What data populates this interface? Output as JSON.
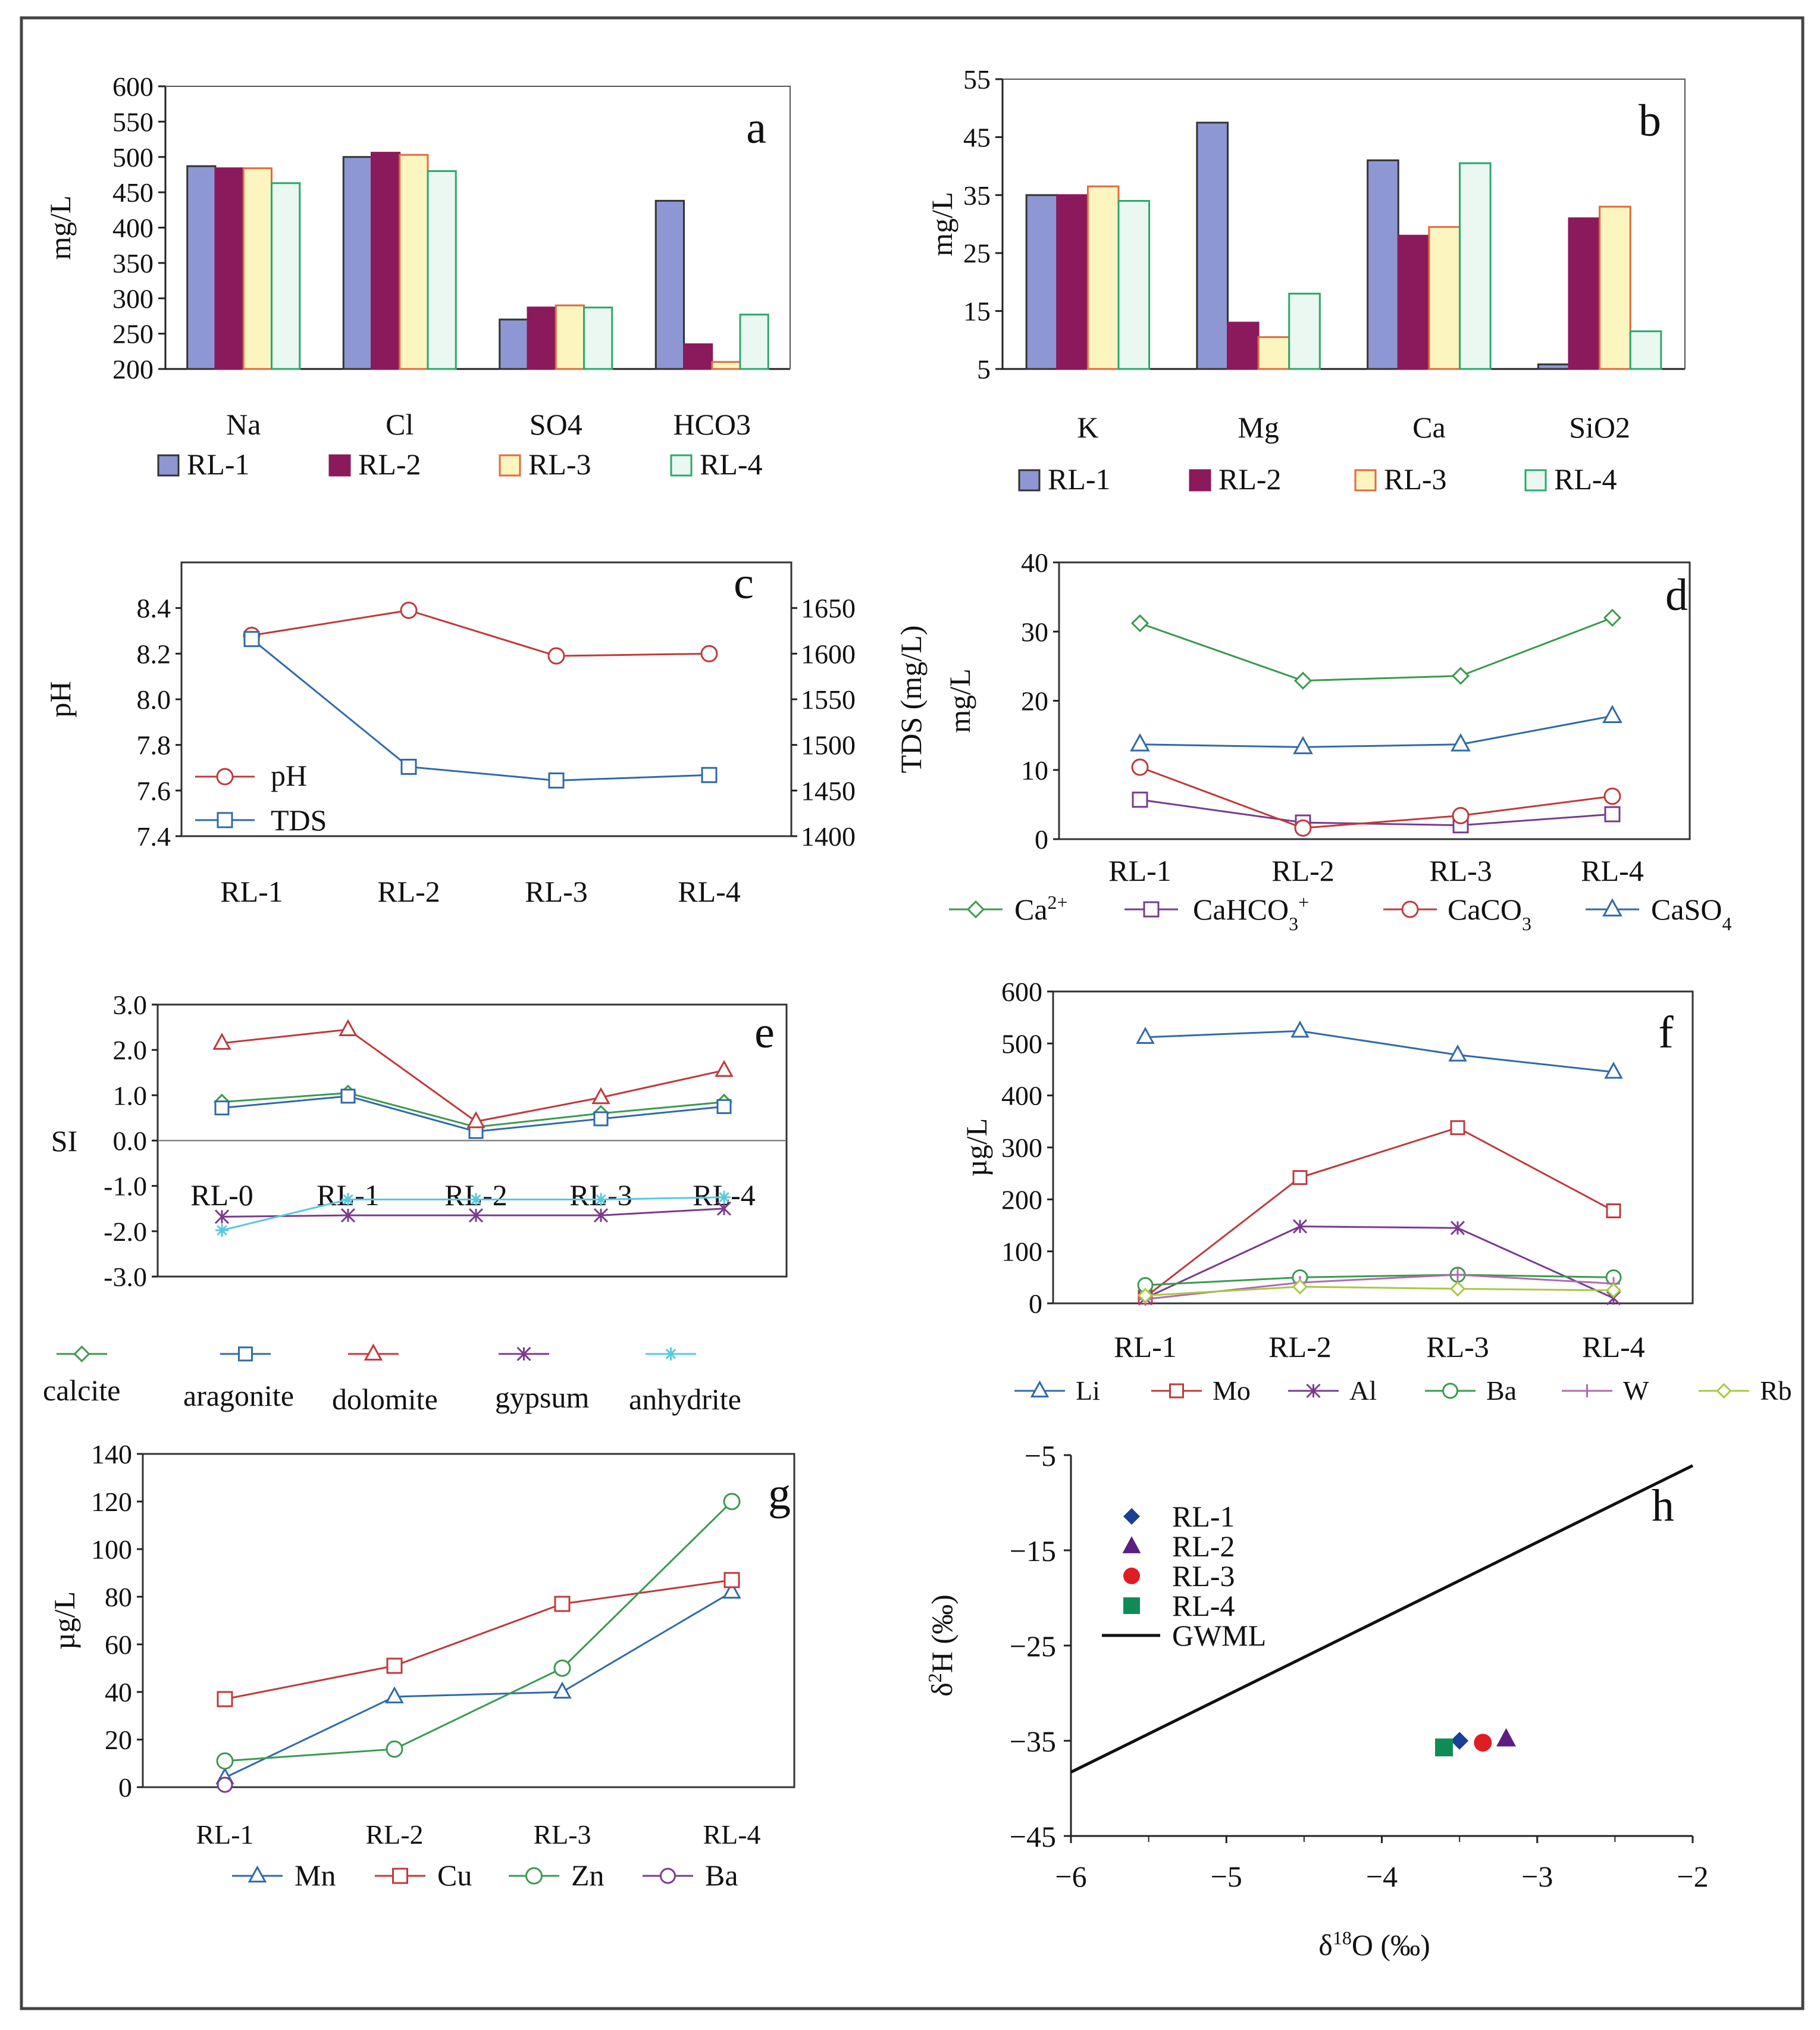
{
  "chart_data": [
    {
      "panel": "a",
      "type": "bar",
      "ylabel": "mg/L",
      "ylim": [
        200,
        600
      ],
      "yticks": [
        600,
        550,
        500,
        450,
        400,
        350,
        300,
        250,
        200
      ],
      "categories": [
        "Na",
        "Cl",
        "SO4",
        "HCO3"
      ],
      "series": [
        {
          "name": "RL-1",
          "values": [
            487,
            500,
            270,
            438
          ]
        },
        {
          "name": "RL-2",
          "values": [
            484,
            506,
            287,
            235
          ]
        },
        {
          "name": "RL-3",
          "values": [
            484,
            503,
            290,
            210
          ]
        },
        {
          "name": "RL-4",
          "values": [
            463,
            480,
            287,
            277
          ]
        }
      ]
    },
    {
      "panel": "b",
      "type": "bar",
      "ylabel": "mg/L",
      "ylim": [
        5,
        55
      ],
      "yticks": [
        55,
        45,
        35,
        25,
        15,
        5
      ],
      "categories": [
        "K",
        "Mg",
        "Ca",
        "SiO2"
      ],
      "series": [
        {
          "name": "RL-1",
          "values": [
            35,
            47.5,
            41,
            5.8
          ]
        },
        {
          "name": "RL-2",
          "values": [
            35,
            13,
            28,
            31
          ]
        },
        {
          "name": "RL-3",
          "values": [
            36.5,
            10.5,
            29.5,
            33
          ]
        },
        {
          "name": "RL-4",
          "values": [
            34,
            18,
            40.5,
            11.5
          ]
        }
      ]
    },
    {
      "panel": "c",
      "type": "line",
      "ylabel": "pH",
      "y2label": "TDS (mg/L)",
      "ylim": [
        7.4,
        8.6
      ],
      "y2lim": [
        1400,
        1700
      ],
      "yticks": [
        "8.4",
        "8.2",
        "8.0",
        "7.8",
        "7.6",
        "7.4"
      ],
      "y2ticks": [
        "1650",
        "1600",
        "1550",
        "1500",
        "1450",
        "1400"
      ],
      "categories": [
        "RL-1",
        "RL-2",
        "RL-3",
        "RL-4"
      ],
      "series": [
        {
          "name": "pH",
          "axis": "left",
          "values": [
            8.28,
            8.39,
            8.19,
            8.2
          ]
        },
        {
          "name": "TDS",
          "axis": "right",
          "values": [
            1616,
            1476,
            1461,
            1467
          ]
        }
      ]
    },
    {
      "panel": "d",
      "type": "line",
      "ylabel": "mg/L",
      "ylim": [
        0,
        40
      ],
      "yticks": [
        "40",
        "30",
        "20",
        "10",
        "0"
      ],
      "categories": [
        "RL-1",
        "RL-2",
        "RL-3",
        "RL-4"
      ],
      "series": [
        {
          "name": "Ca",
          "sup": "2+",
          "sub": "",
          "values": [
            31.2,
            22.9,
            23.6,
            32
          ]
        },
        {
          "name": "CaHCO",
          "sup": "+",
          "sub": "3",
          "values": [
            5.7,
            2.4,
            2,
            3.6
          ]
        },
        {
          "name": "CaCO",
          "sup": "",
          "sub": "3",
          "values": [
            10.4,
            1.6,
            3.4,
            6.2
          ]
        },
        {
          "name": "CaSO",
          "sup": "",
          "sub": "4",
          "values": [
            13.7,
            13.3,
            13.7,
            17.8
          ]
        }
      ]
    },
    {
      "panel": "e",
      "type": "line",
      "ylabel": "SI",
      "ylim": [
        -3,
        3
      ],
      "yticks": [
        "3.0",
        "2.0",
        "1.0",
        "0.0",
        "-1.0",
        "-2.0",
        "-3.0"
      ],
      "categories": [
        "RL-0",
        "RL-1",
        "RL-2",
        "RL-3",
        "RL-4"
      ],
      "series": [
        {
          "name": "calcite",
          "values": [
            0.85,
            1.05,
            0.3,
            0.6,
            0.85
          ]
        },
        {
          "name": "aragonite",
          "values": [
            0.72,
            0.98,
            0.2,
            0.48,
            0.75
          ]
        },
        {
          "name": "dolomite",
          "values": [
            2.15,
            2.45,
            0.42,
            0.95,
            1.55
          ]
        },
        {
          "name": "gypsum",
          "values": [
            -1.68,
            -1.65,
            -1.65,
            -1.65,
            -1.5
          ]
        },
        {
          "name": "anhydrite",
          "values": [
            -1.98,
            -1.3,
            -1.3,
            -1.3,
            -1.25
          ]
        }
      ]
    },
    {
      "panel": "f",
      "type": "line",
      "ylabel": "µg/L",
      "ylim": [
        0,
        600
      ],
      "yticks": [
        "600",
        "500",
        "400",
        "300",
        "200",
        "100",
        "0"
      ],
      "categories": [
        "RL-1",
        "RL-2",
        "RL-3",
        "RL-4"
      ],
      "series": [
        {
          "name": "Li",
          "values": [
            512,
            524,
            478,
            445
          ]
        },
        {
          "name": "Mo",
          "values": [
            12,
            242,
            338,
            178
          ]
        },
        {
          "name": "Al",
          "values": [
            10,
            148,
            145,
            10
          ]
        },
        {
          "name": "Ba",
          "values": [
            35,
            50,
            55,
            50
          ]
        },
        {
          "name": "W",
          "values": [
            8,
            40,
            55,
            38
          ]
        },
        {
          "name": "Rb",
          "values": [
            15,
            32,
            28,
            25
          ]
        }
      ]
    },
    {
      "panel": "g",
      "type": "line",
      "ylabel": "µg/L",
      "ylim": [
        0,
        140
      ],
      "yticks": [
        "140",
        "120",
        "100",
        "80",
        "60",
        "40",
        "20",
        "0"
      ],
      "categories": [
        "RL-1",
        "RL-2",
        "RL-3",
        "RL-4"
      ],
      "series": [
        {
          "name": "Mn",
          "values": [
            4,
            38,
            40,
            82
          ]
        },
        {
          "name": "Cu",
          "values": [
            37,
            51,
            77,
            87
          ]
        },
        {
          "name": "Zn",
          "values": [
            11,
            16,
            50,
            120
          ]
        },
        {
          "name": "Ba",
          "values": [
            1,
            null,
            null,
            null
          ]
        }
      ]
    },
    {
      "panel": "h",
      "type": "scatter",
      "xlabel": "δ18O (‰)",
      "ylabel": "δ2H (‰)",
      "xlim": [
        -6,
        -2
      ],
      "ylim": [
        -45,
        -5
      ],
      "xticks": [
        "−6",
        "−5",
        "−4",
        "−3",
        "−2"
      ],
      "yticks": [
        "−5",
        "−15",
        "−25",
        "−35",
        "−45"
      ],
      "points": [
        {
          "name": "RL-1",
          "x": -3.5,
          "y": -35
        },
        {
          "name": "RL-2",
          "x": -3.2,
          "y": -34.8
        },
        {
          "name": "RL-3",
          "x": -3.35,
          "y": -35.2
        },
        {
          "name": "RL-4",
          "x": -3.6,
          "y": -35.7
        }
      ],
      "line": {
        "name": "GWML",
        "x": [
          -6,
          -2
        ],
        "y": [
          -38.3,
          -6.1
        ]
      }
    }
  ],
  "colors": {
    "bar_rl1": "#8d97d3",
    "bar_rl2": "#8b1a5c",
    "bar_rl3": "#fdf5c0",
    "bar_rl3_edge": "#e06a3e",
    "bar_rl4": "#eaf8f1",
    "bar_rl4_edge": "#2aa86a",
    "red": "#c0393b",
    "blue": "#2f6aa8",
    "green": "#3a9a4e",
    "purple": "#7a3a8f",
    "pink": "#b06ab0",
    "lightgreen": "#a8c840",
    "cyan": "#58c8e0",
    "diamond_blue": "#1b3f94",
    "tri_purple": "#5b1e82",
    "dot_red": "#e01d25",
    "sq_green": "#0f8c55"
  }
}
